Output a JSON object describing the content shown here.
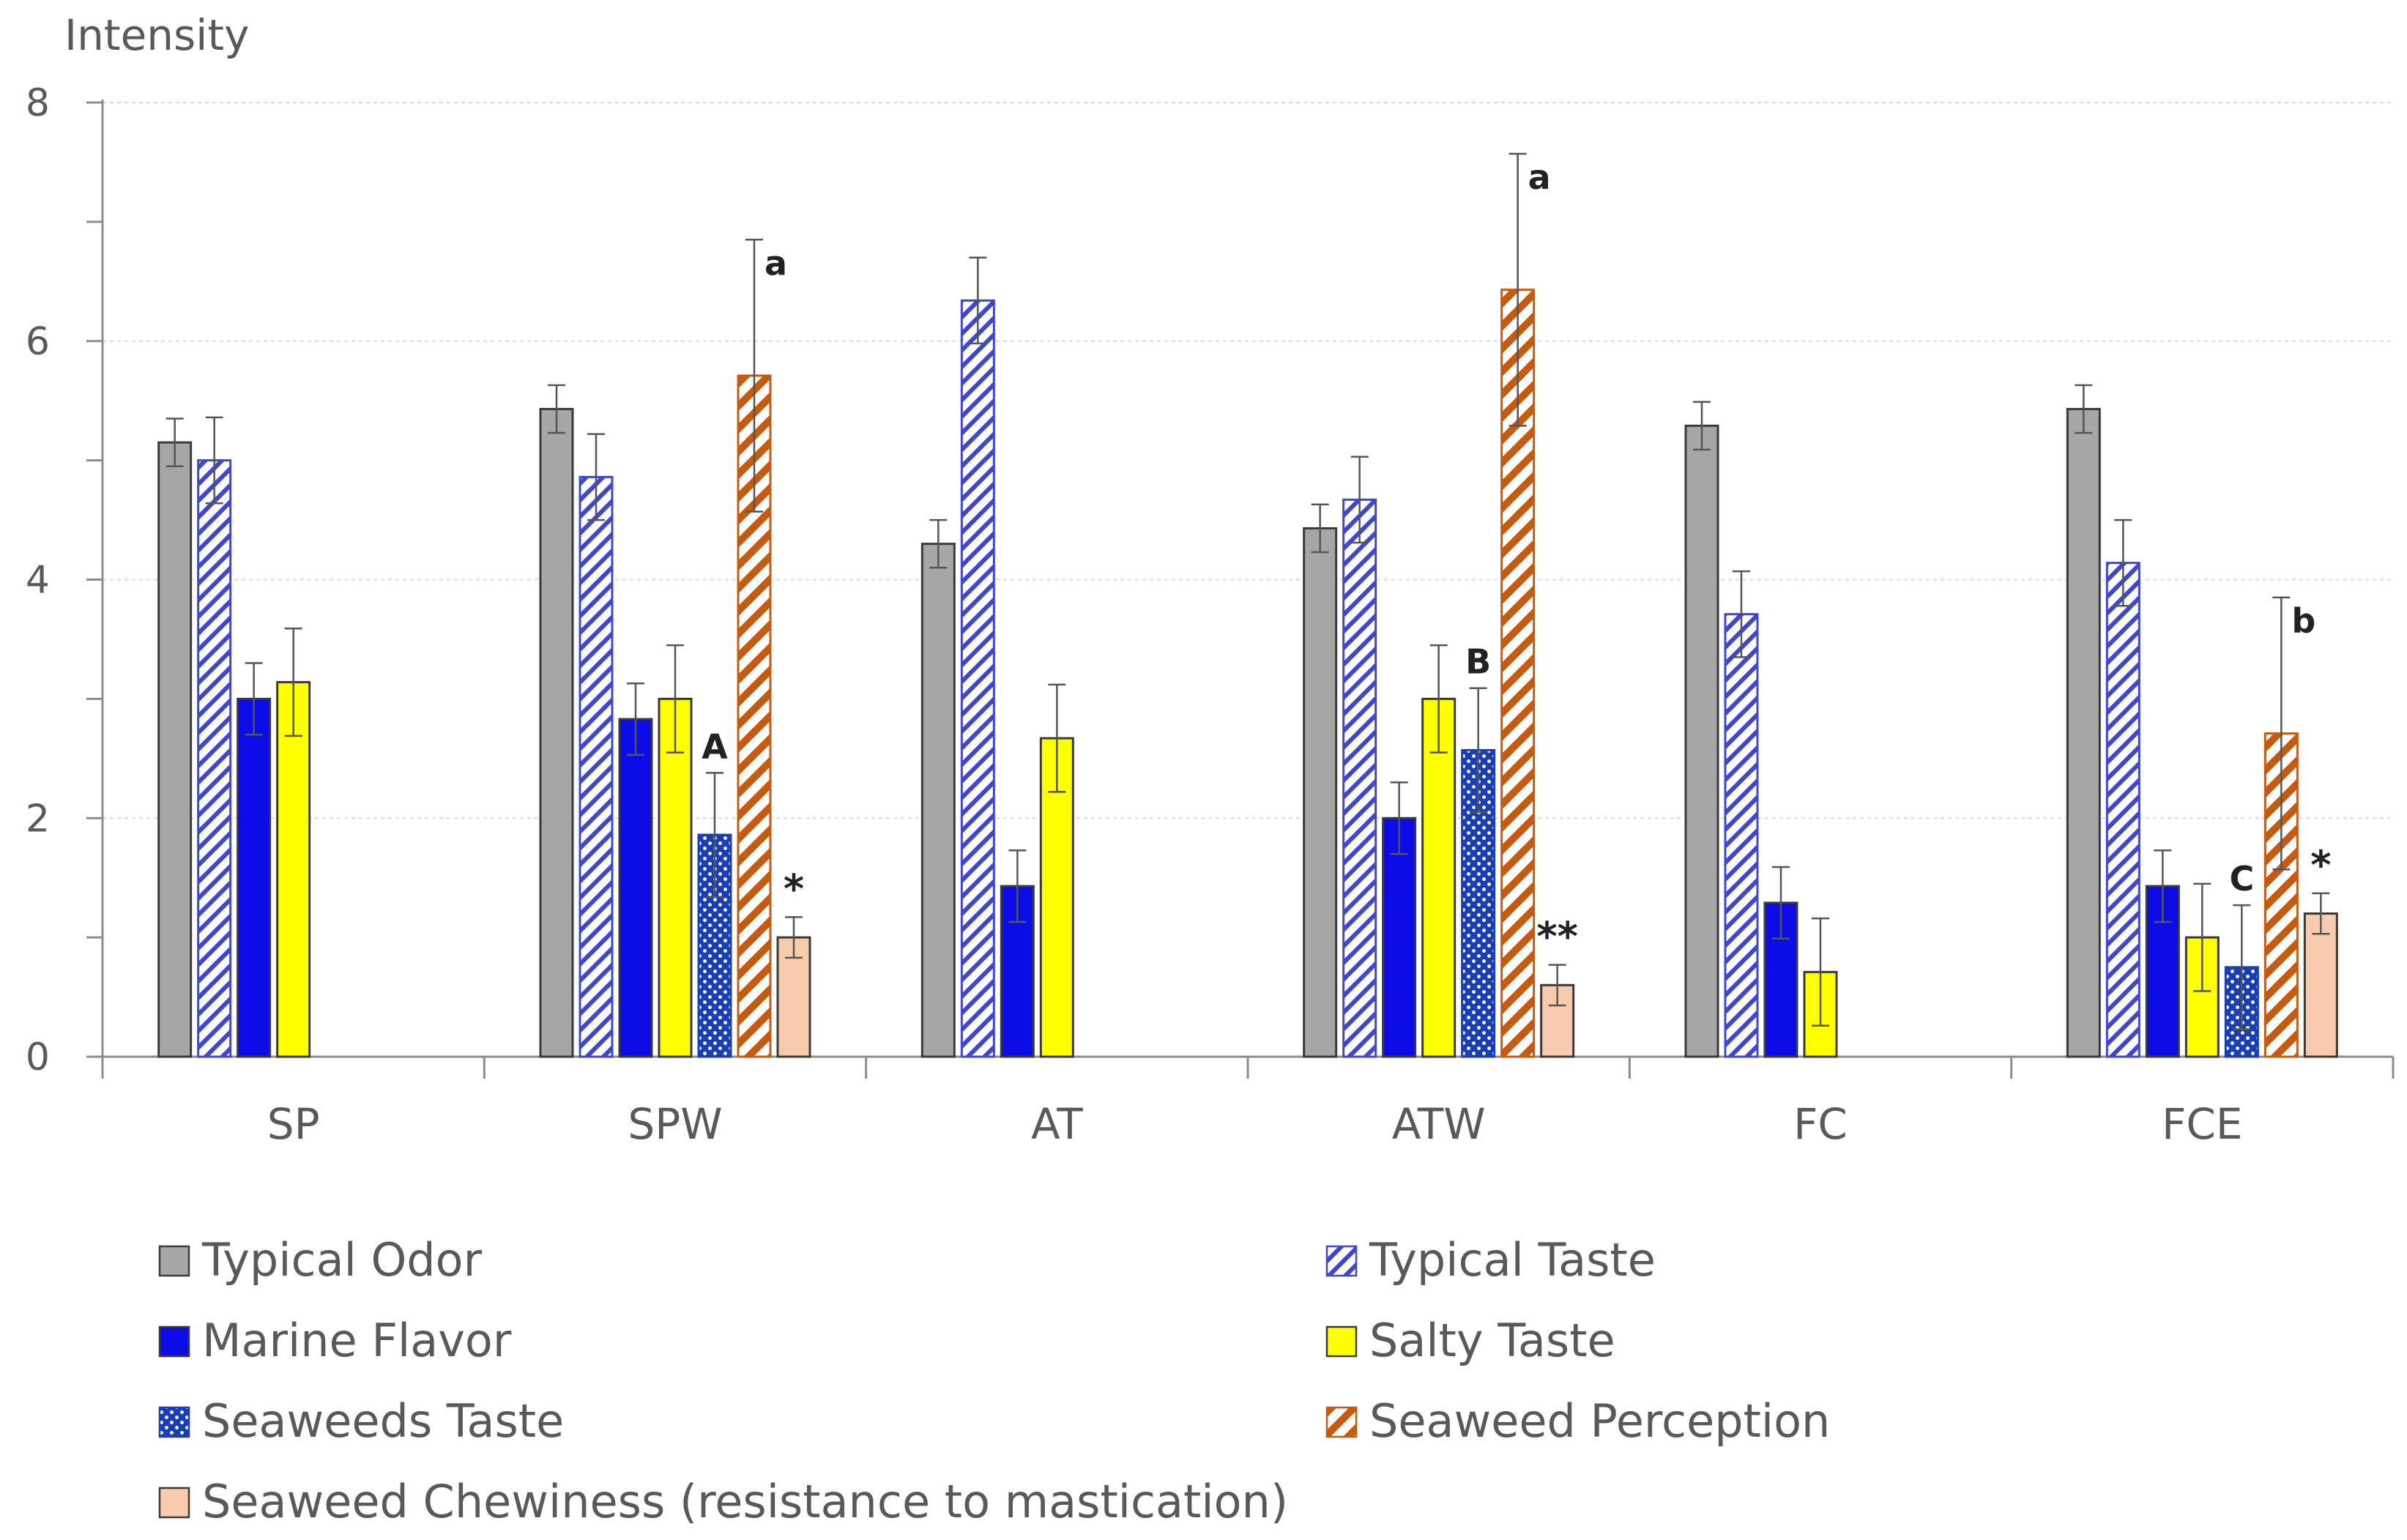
{
  "chart_data": {
    "type": "bar",
    "title": "",
    "ylabel": "Intensity",
    "xlabel": "",
    "ylim": [
      0,
      8
    ],
    "yticks": [
      0,
      2,
      4,
      6,
      8
    ],
    "grid": true,
    "legend_position": "bottom",
    "categories": [
      "SP",
      "SPW",
      "AT",
      "ATW",
      "FC",
      "FCE"
    ],
    "series": [
      {
        "name": "Typical Odor",
        "pattern": "solid",
        "color": "#a6a6a6",
        "values": [
          5.15,
          5.43,
          4.3,
          4.43,
          5.29,
          5.43
        ],
        "errors": [
          0.2,
          0.2,
          0.2,
          0.2,
          0.2,
          0.2
        ]
      },
      {
        "name": "Typical Taste",
        "pattern": "diagonal-hatch",
        "color": "#3f48cc",
        "values": [
          5.0,
          4.86,
          6.34,
          4.67,
          3.71,
          4.14
        ],
        "errors": [
          0.36,
          0.36,
          0.36,
          0.36,
          0.36,
          0.36
        ]
      },
      {
        "name": "Marine Flavor",
        "pattern": "solid",
        "color": "#0c0ce6",
        "values": [
          3.0,
          2.83,
          1.43,
          2.0,
          1.29,
          1.43
        ],
        "errors": [
          0.3,
          0.3,
          0.3,
          0.3,
          0.3,
          0.3
        ]
      },
      {
        "name": "Salty Taste",
        "pattern": "solid",
        "color": "#ffff00",
        "values": [
          3.14,
          3.0,
          2.67,
          3.0,
          0.71,
          1.0
        ],
        "errors": [
          0.45,
          0.45,
          0.45,
          0.45,
          0.45,
          0.45
        ]
      },
      {
        "name": "Seaweeds Taste",
        "pattern": "dots",
        "color": "#1a3fb5",
        "values": [
          null,
          1.86,
          null,
          2.57,
          null,
          0.75
        ],
        "errors": [
          0,
          0.52,
          0,
          0.52,
          0,
          0.52
        ]
      },
      {
        "name": "Seaweed Perception",
        "pattern": "diagonal-hatch",
        "color": "#c55a11",
        "values": [
          null,
          5.71,
          null,
          6.43,
          null,
          2.71
        ],
        "errors": [
          0,
          1.14,
          0,
          1.14,
          0,
          1.14
        ]
      },
      {
        "name": "Seaweed Chewiness (resistance to mastication)",
        "pattern": "solid",
        "color": "#f8cbad",
        "values": [
          null,
          1.0,
          null,
          0.6,
          null,
          1.2
        ],
        "errors": [
          0,
          0.17,
          0,
          0.17,
          0,
          0.17
        ]
      }
    ],
    "annotations": [
      {
        "text": "A",
        "category": "SPW",
        "series": "Seaweeds Taste"
      },
      {
        "text": "a",
        "category": "SPW",
        "series": "Seaweed Perception"
      },
      {
        "text": "*",
        "category": "SPW",
        "series": "Seaweed Chewiness (resistance to mastication)"
      },
      {
        "text": "B",
        "category": "ATW",
        "series": "Seaweeds Taste"
      },
      {
        "text": "a",
        "category": "ATW",
        "series": "Seaweed Perception"
      },
      {
        "text": "**",
        "category": "ATW",
        "series": "Seaweed Chewiness (resistance to mastication)"
      },
      {
        "text": "C",
        "category": "FCE",
        "series": "Seaweeds Taste"
      },
      {
        "text": "b",
        "category": "FCE",
        "series": "Seaweed Perception"
      },
      {
        "text": "*",
        "category": "FCE",
        "series": "Seaweed Chewiness (resistance to mastication)"
      }
    ]
  }
}
